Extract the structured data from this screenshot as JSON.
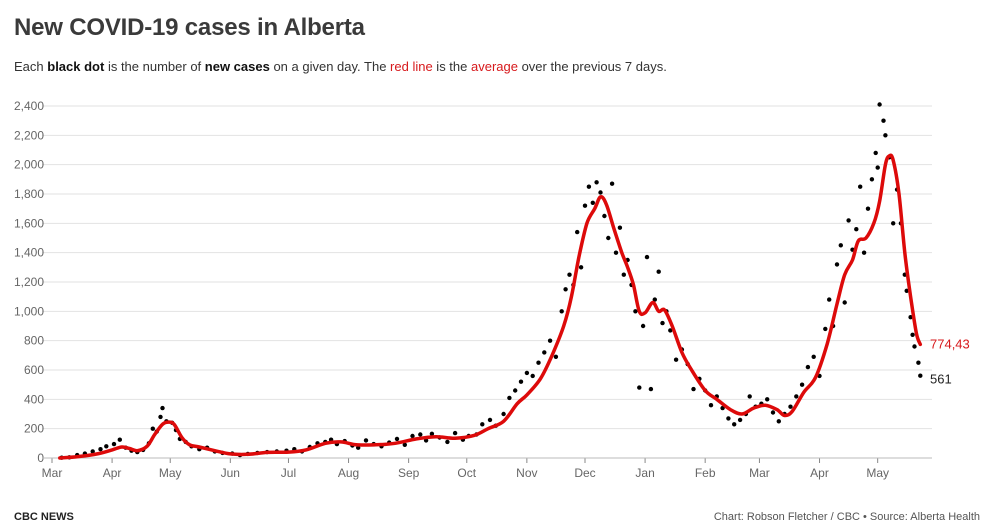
{
  "header": {
    "title": "New COVID-19 cases in Alberta",
    "subtitle": {
      "p1": "Each ",
      "b1": "black dot",
      "p2": " is the number of ",
      "b2": "new cases",
      "p3": " on a given day. The ",
      "r1": "red line",
      "p4": " is the ",
      "r2": "average",
      "p5": " over the previous 7 days."
    }
  },
  "footer": {
    "left": "CBC NEWS",
    "right": "Chart: Robson Fletcher / CBC • Source: Alberta Health"
  },
  "colors": {
    "dots": "#000000",
    "line": "#dd0a0a",
    "avg_label": "#d7191c",
    "grid": "#e2e2e2"
  },
  "chart_data": {
    "type": "scatter",
    "xlabel": "",
    "ylabel": "",
    "ylim": [
      0,
      2400
    ],
    "yticks": [
      0,
      200,
      400,
      600,
      800,
      1000,
      1200,
      1400,
      1600,
      1800,
      2000,
      2200,
      2400
    ],
    "xlim": [
      "2020-03-01",
      "2021-05-28"
    ],
    "xticks": [
      {
        "date": "2020-03-01",
        "label": "Mar"
      },
      {
        "date": "2020-04-01",
        "label": "Apr"
      },
      {
        "date": "2020-05-01",
        "label": "May"
      },
      {
        "date": "2020-06-01",
        "label": "Jun"
      },
      {
        "date": "2020-07-01",
        "label": "Jul"
      },
      {
        "date": "2020-08-01",
        "label": "Aug"
      },
      {
        "date": "2020-09-01",
        "label": "Sep"
      },
      {
        "date": "2020-10-01",
        "label": "Oct"
      },
      {
        "date": "2020-11-01",
        "label": "Nov"
      },
      {
        "date": "2020-12-01",
        "label": "Dec"
      },
      {
        "date": "2021-01-01",
        "label": "Jan"
      },
      {
        "date": "2021-02-01",
        "label": "Feb"
      },
      {
        "date": "2021-03-01",
        "label": "Mar"
      },
      {
        "date": "2021-04-01",
        "label": "Apr"
      },
      {
        "date": "2021-05-01",
        "label": "May"
      }
    ],
    "grid": true,
    "legend": "none",
    "series": [
      {
        "kind": "line",
        "points": [
          [
            "2020-03-05",
            0
          ],
          [
            "2020-03-15",
            10
          ],
          [
            "2020-03-25",
            30
          ],
          [
            "2020-04-01",
            55
          ],
          [
            "2020-04-06",
            75
          ],
          [
            "2020-04-10",
            65
          ],
          [
            "2020-04-14",
            50
          ],
          [
            "2020-04-19",
            80
          ],
          [
            "2020-04-23",
            160
          ],
          [
            "2020-04-27",
            230
          ],
          [
            "2020-04-30",
            245
          ],
          [
            "2020-05-03",
            230
          ],
          [
            "2020-05-07",
            140
          ],
          [
            "2020-05-11",
            90
          ],
          [
            "2020-05-16",
            75
          ],
          [
            "2020-05-24",
            50
          ],
          [
            "2020-06-01",
            28
          ],
          [
            "2020-06-10",
            25
          ],
          [
            "2020-06-20",
            38
          ],
          [
            "2020-07-01",
            40
          ],
          [
            "2020-07-10",
            55
          ],
          [
            "2020-07-20",
            100
          ],
          [
            "2020-07-28",
            110
          ],
          [
            "2020-08-05",
            90
          ],
          [
            "2020-08-15",
            90
          ],
          [
            "2020-08-25",
            100
          ],
          [
            "2020-09-05",
            130
          ],
          [
            "2020-09-15",
            145
          ],
          [
            "2020-09-25",
            135
          ],
          [
            "2020-10-05",
            155
          ],
          [
            "2020-10-12",
            200
          ],
          [
            "2020-10-20",
            250
          ],
          [
            "2020-10-27",
            370
          ],
          [
            "2020-11-01",
            430
          ],
          [
            "2020-11-08",
            540
          ],
          [
            "2020-11-14",
            700
          ],
          [
            "2020-11-20",
            900
          ],
          [
            "2020-11-24",
            1100
          ],
          [
            "2020-11-28",
            1380
          ],
          [
            "2020-12-02",
            1600
          ],
          [
            "2020-12-06",
            1700
          ],
          [
            "2020-12-09",
            1780
          ],
          [
            "2020-12-12",
            1730
          ],
          [
            "2020-12-16",
            1560
          ],
          [
            "2020-12-20",
            1400
          ],
          [
            "2020-12-23",
            1300
          ],
          [
            "2020-12-26",
            1180
          ],
          [
            "2020-12-29",
            1000
          ],
          [
            "2021-01-01",
            990
          ],
          [
            "2021-01-05",
            1060
          ],
          [
            "2021-01-08",
            1000
          ],
          [
            "2021-01-11",
            1010
          ],
          [
            "2021-01-15",
            900
          ],
          [
            "2021-01-20",
            720
          ],
          [
            "2021-01-25",
            600
          ],
          [
            "2021-02-01",
            460
          ],
          [
            "2021-02-07",
            400
          ],
          [
            "2021-02-14",
            330
          ],
          [
            "2021-02-20",
            300
          ],
          [
            "2021-02-26",
            340
          ],
          [
            "2021-03-04",
            360
          ],
          [
            "2021-03-10",
            330
          ],
          [
            "2021-03-14",
            290
          ],
          [
            "2021-03-18",
            320
          ],
          [
            "2021-03-24",
            450
          ],
          [
            "2021-03-30",
            550
          ],
          [
            "2021-04-05",
            780
          ],
          [
            "2021-04-10",
            1050
          ],
          [
            "2021-04-14",
            1250
          ],
          [
            "2021-04-18",
            1350
          ],
          [
            "2021-04-21",
            1480
          ],
          [
            "2021-04-25",
            1500
          ],
          [
            "2021-04-29",
            1600
          ],
          [
            "2021-05-02",
            1750
          ],
          [
            "2021-05-05",
            2000
          ],
          [
            "2021-05-07",
            2060
          ],
          [
            "2021-05-09",
            2030
          ],
          [
            "2021-05-12",
            1800
          ],
          [
            "2021-05-15",
            1400
          ],
          [
            "2021-05-18",
            1100
          ],
          [
            "2021-05-21",
            850
          ],
          [
            "2021-05-23",
            774.43
          ]
        ]
      },
      {
        "kind": "dots",
        "points": [
          [
            "2020-03-06",
            2
          ],
          [
            "2020-03-10",
            5
          ],
          [
            "2020-03-14",
            20
          ],
          [
            "2020-03-18",
            30
          ],
          [
            "2020-03-22",
            45
          ],
          [
            "2020-03-26",
            60
          ],
          [
            "2020-03-29",
            80
          ],
          [
            "2020-04-02",
            95
          ],
          [
            "2020-04-05",
            125
          ],
          [
            "2020-04-08",
            70
          ],
          [
            "2020-04-11",
            50
          ],
          [
            "2020-04-14",
            40
          ],
          [
            "2020-04-17",
            55
          ],
          [
            "2020-04-20",
            100
          ],
          [
            "2020-04-22",
            200
          ],
          [
            "2020-04-24",
            180
          ],
          [
            "2020-04-26",
            280
          ],
          [
            "2020-04-27",
            340
          ],
          [
            "2020-04-29",
            250
          ],
          [
            "2020-05-02",
            240
          ],
          [
            "2020-05-04",
            190
          ],
          [
            "2020-05-06",
            130
          ],
          [
            "2020-05-09",
            110
          ],
          [
            "2020-05-12",
            80
          ],
          [
            "2020-05-16",
            60
          ],
          [
            "2020-05-20",
            70
          ],
          [
            "2020-05-24",
            45
          ],
          [
            "2020-05-28",
            35
          ],
          [
            "2020-06-02",
            30
          ],
          [
            "2020-06-06",
            20
          ],
          [
            "2020-06-10",
            28
          ],
          [
            "2020-06-15",
            35
          ],
          [
            "2020-06-20",
            40
          ],
          [
            "2020-06-25",
            45
          ],
          [
            "2020-06-30",
            50
          ],
          [
            "2020-07-04",
            60
          ],
          [
            "2020-07-08",
            45
          ],
          [
            "2020-07-12",
            75
          ],
          [
            "2020-07-16",
            100
          ],
          [
            "2020-07-20",
            110
          ],
          [
            "2020-07-23",
            125
          ],
          [
            "2020-07-26",
            95
          ],
          [
            "2020-07-30",
            115
          ],
          [
            "2020-08-03",
            85
          ],
          [
            "2020-08-06",
            70
          ],
          [
            "2020-08-10",
            120
          ],
          [
            "2020-08-14",
            95
          ],
          [
            "2020-08-18",
            80
          ],
          [
            "2020-08-22",
            105
          ],
          [
            "2020-08-26",
            130
          ],
          [
            "2020-08-30",
            90
          ],
          [
            "2020-09-03",
            150
          ],
          [
            "2020-09-07",
            160
          ],
          [
            "2020-09-10",
            120
          ],
          [
            "2020-09-13",
            165
          ],
          [
            "2020-09-17",
            140
          ],
          [
            "2020-09-21",
            110
          ],
          [
            "2020-09-25",
            170
          ],
          [
            "2020-09-29",
            125
          ],
          [
            "2020-10-02",
            150
          ],
          [
            "2020-10-06",
            160
          ],
          [
            "2020-10-09",
            230
          ],
          [
            "2020-10-13",
            260
          ],
          [
            "2020-10-16",
            220
          ],
          [
            "2020-10-20",
            300
          ],
          [
            "2020-10-23",
            410
          ],
          [
            "2020-10-26",
            460
          ],
          [
            "2020-10-29",
            520
          ],
          [
            "2020-11-01",
            580
          ],
          [
            "2020-11-04",
            560
          ],
          [
            "2020-11-07",
            650
          ],
          [
            "2020-11-10",
            720
          ],
          [
            "2020-11-13",
            800
          ],
          [
            "2020-11-16",
            690
          ],
          [
            "2020-11-19",
            1000
          ],
          [
            "2020-11-21",
            1150
          ],
          [
            "2020-11-23",
            1250
          ],
          [
            "2020-11-25",
            1180
          ],
          [
            "2020-11-27",
            1540
          ],
          [
            "2020-11-29",
            1300
          ],
          [
            "2020-12-01",
            1720
          ],
          [
            "2020-12-03",
            1850
          ],
          [
            "2020-12-05",
            1740
          ],
          [
            "2020-12-07",
            1880
          ],
          [
            "2020-12-09",
            1810
          ],
          [
            "2020-12-11",
            1650
          ],
          [
            "2020-12-13",
            1500
          ],
          [
            "2020-12-15",
            1870
          ],
          [
            "2020-12-17",
            1400
          ],
          [
            "2020-12-19",
            1570
          ],
          [
            "2020-12-21",
            1250
          ],
          [
            "2020-12-23",
            1350
          ],
          [
            "2020-12-25",
            1180
          ],
          [
            "2020-12-27",
            1000
          ],
          [
            "2020-12-29",
            480
          ],
          [
            "2020-12-31",
            900
          ],
          [
            "2021-01-02",
            1370
          ],
          [
            "2021-01-04",
            470
          ],
          [
            "2021-01-06",
            1080
          ],
          [
            "2021-01-08",
            1270
          ],
          [
            "2021-01-10",
            920
          ],
          [
            "2021-01-12",
            1000
          ],
          [
            "2021-01-14",
            870
          ],
          [
            "2021-01-17",
            670
          ],
          [
            "2021-01-20",
            740
          ],
          [
            "2021-01-23",
            640
          ],
          [
            "2021-01-26",
            470
          ],
          [
            "2021-01-29",
            540
          ],
          [
            "2021-02-01",
            460
          ],
          [
            "2021-02-04",
            360
          ],
          [
            "2021-02-07",
            420
          ],
          [
            "2021-02-10",
            340
          ],
          [
            "2021-02-13",
            270
          ],
          [
            "2021-02-16",
            230
          ],
          [
            "2021-02-19",
            260
          ],
          [
            "2021-02-22",
            300
          ],
          [
            "2021-02-24",
            420
          ],
          [
            "2021-02-27",
            350
          ],
          [
            "2021-03-02",
            370
          ],
          [
            "2021-03-05",
            400
          ],
          [
            "2021-03-08",
            310
          ],
          [
            "2021-03-11",
            250
          ],
          [
            "2021-03-14",
            300
          ],
          [
            "2021-03-17",
            350
          ],
          [
            "2021-03-20",
            420
          ],
          [
            "2021-03-23",
            500
          ],
          [
            "2021-03-26",
            620
          ],
          [
            "2021-03-29",
            690
          ],
          [
            "2021-04-01",
            560
          ],
          [
            "2021-04-04",
            880
          ],
          [
            "2021-04-06",
            1080
          ],
          [
            "2021-04-08",
            900
          ],
          [
            "2021-04-10",
            1320
          ],
          [
            "2021-04-12",
            1450
          ],
          [
            "2021-04-14",
            1060
          ],
          [
            "2021-04-16",
            1620
          ],
          [
            "2021-04-18",
            1420
          ],
          [
            "2021-04-20",
            1560
          ],
          [
            "2021-04-22",
            1850
          ],
          [
            "2021-04-24",
            1400
          ],
          [
            "2021-04-26",
            1700
          ],
          [
            "2021-04-28",
            1900
          ],
          [
            "2021-04-30",
            2080
          ],
          [
            "2021-05-01",
            1980
          ],
          [
            "2021-05-02",
            2410
          ],
          [
            "2021-05-04",
            2300
          ],
          [
            "2021-05-05",
            2200
          ],
          [
            "2021-05-07",
            2050
          ],
          [
            "2021-05-09",
            1600
          ],
          [
            "2021-05-11",
            1830
          ],
          [
            "2021-05-13",
            1600
          ],
          [
            "2021-05-15",
            1250
          ],
          [
            "2021-05-16",
            1140
          ],
          [
            "2021-05-18",
            960
          ],
          [
            "2021-05-19",
            840
          ],
          [
            "2021-05-20",
            760
          ],
          [
            "2021-05-22",
            650
          ],
          [
            "2021-05-23",
            561
          ]
        ]
      }
    ],
    "end_labels": {
      "average": {
        "text": "774,43",
        "value": 774.43
      },
      "cases": {
        "text": "561",
        "value": 561
      }
    }
  }
}
